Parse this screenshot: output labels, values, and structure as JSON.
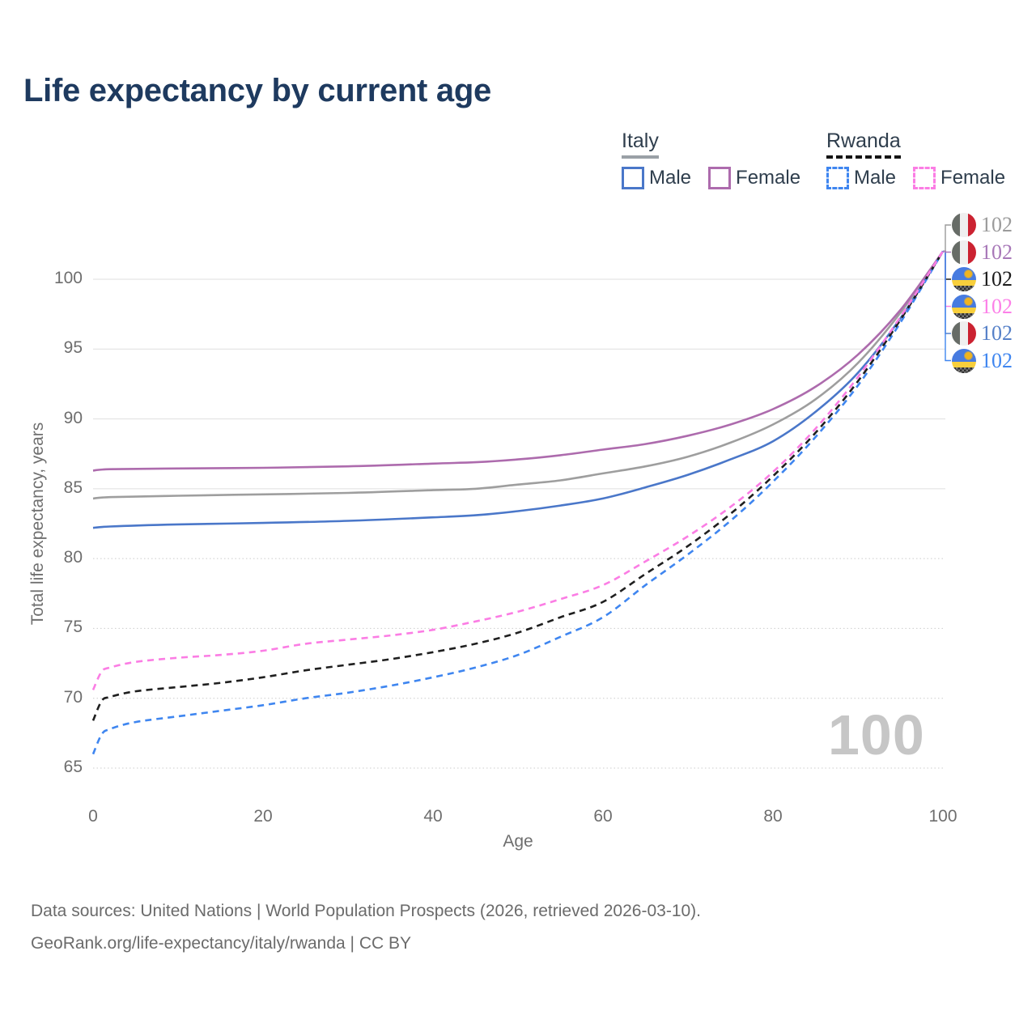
{
  "title": "Life expectancy by current age",
  "legend": {
    "groups": [
      {
        "label": "Italy",
        "style": "solid",
        "items": [
          {
            "label": "Male",
            "color": "#4a77c9"
          },
          {
            "label": "Female",
            "color": "#ad6bad"
          }
        ]
      },
      {
        "label": "Rwanda",
        "style": "dashed",
        "items": [
          {
            "label": "Male",
            "color": "#3f86f0"
          },
          {
            "label": "Female",
            "color": "#fb7de4"
          }
        ]
      }
    ]
  },
  "axes": {
    "y": {
      "label": "Total life expectancy, years",
      "ticks": [
        "100",
        "95",
        "90",
        "85",
        "80",
        "75",
        "70",
        "65"
      ]
    },
    "x": {
      "label": "Age",
      "ticks": [
        "0",
        "20",
        "40",
        "60",
        "80",
        "100"
      ]
    }
  },
  "watermark": "100",
  "endpoints": [
    {
      "country": "Italy",
      "flag": "italy-flag-icon",
      "value": "102",
      "color": "#9b9b9b"
    },
    {
      "country": "Italy",
      "flag": "italy-flag-icon",
      "value": "102",
      "color": "#a878b8"
    },
    {
      "country": "Rwanda",
      "flag": "rwanda-flag-icon",
      "value": "102",
      "color": "#1b1b1b"
    },
    {
      "country": "Rwanda",
      "flag": "rwanda-flag-icon",
      "value": "102",
      "color": "#fc80e8"
    },
    {
      "country": "Italy",
      "flag": "italy-flag-icon",
      "value": "102",
      "color": "#5580c8"
    },
    {
      "country": "Rwanda",
      "flag": "rwanda-flag-icon",
      "value": "102",
      "color": "#3f86f0"
    }
  ],
  "footer": {
    "line1": "Data sources: United Nations | World Population Prospects (2026, retrieved 2026-03-10).",
    "line2": "GeoRank.org/life-expectancy/italy/rwanda | CC BY"
  },
  "colors": {
    "title": "#1e3a5f",
    "axis_text": "#6e6e6e",
    "gridline": "#dfdfdf",
    "watermark": "#c6c6c6",
    "italy_male": "#4a77c9",
    "italy_female": "#ad6bad",
    "italy_total": "#9e9e9e",
    "rwanda_male": "#3f86f0",
    "rwanda_female": "#fb7de4",
    "rwanda_total": "#1f1f1f",
    "flag_italy": [
      "#676c67",
      "#efefef",
      "#cb2231"
    ],
    "flag_rwanda": [
      "#477be0",
      "#f8cf3c",
      "#f0b41f",
      "#2d2d2d"
    ]
  },
  "chart_data": {
    "type": "line",
    "title": "Life expectancy by current age",
    "xlabel": "Age",
    "ylabel": "Total life expectancy, years",
    "xlim": [
      0,
      100
    ],
    "ylim": [
      65,
      103
    ],
    "x_ticks": [
      0,
      20,
      40,
      60,
      80,
      100
    ],
    "y_ticks": [
      65,
      70,
      75,
      80,
      85,
      90,
      95,
      100
    ],
    "grid": true,
    "legend_position": "top-right",
    "series": [
      {
        "name": "Italy Total",
        "color": "#9e9e9e",
        "dash": "solid",
        "points": [
          [
            0,
            84.3
          ],
          [
            2,
            84.4
          ],
          [
            10,
            84.5
          ],
          [
            20,
            84.6
          ],
          [
            30,
            84.7
          ],
          [
            40,
            84.9
          ],
          [
            45,
            85.0
          ],
          [
            50,
            85.3
          ],
          [
            55,
            85.6
          ],
          [
            60,
            86.1
          ],
          [
            65,
            86.6
          ],
          [
            70,
            87.3
          ],
          [
            75,
            88.3
          ],
          [
            80,
            89.6
          ],
          [
            85,
            91.4
          ],
          [
            90,
            94.0
          ],
          [
            95,
            97.6
          ],
          [
            100,
            102
          ]
        ]
      },
      {
        "name": "Italy Male",
        "color": "#4a77c9",
        "dash": "solid",
        "points": [
          [
            0,
            82.2
          ],
          [
            2,
            82.3
          ],
          [
            10,
            82.45
          ],
          [
            20,
            82.55
          ],
          [
            30,
            82.7
          ],
          [
            40,
            82.95
          ],
          [
            45,
            83.1
          ],
          [
            50,
            83.4
          ],
          [
            55,
            83.8
          ],
          [
            60,
            84.3
          ],
          [
            65,
            85.1
          ],
          [
            70,
            86.0
          ],
          [
            75,
            87.1
          ],
          [
            80,
            88.4
          ],
          [
            85,
            90.5
          ],
          [
            90,
            93.3
          ],
          [
            95,
            97.2
          ],
          [
            100,
            102
          ]
        ]
      },
      {
        "name": "Italy Female",
        "color": "#ad6bad",
        "dash": "solid",
        "points": [
          [
            0,
            86.3
          ],
          [
            2,
            86.4
          ],
          [
            10,
            86.45
          ],
          [
            20,
            86.5
          ],
          [
            30,
            86.6
          ],
          [
            40,
            86.8
          ],
          [
            45,
            86.9
          ],
          [
            50,
            87.1
          ],
          [
            55,
            87.4
          ],
          [
            60,
            87.8
          ],
          [
            65,
            88.2
          ],
          [
            70,
            88.8
          ],
          [
            75,
            89.6
          ],
          [
            80,
            90.7
          ],
          [
            85,
            92.3
          ],
          [
            90,
            94.6
          ],
          [
            95,
            97.8
          ],
          [
            100,
            102
          ]
        ]
      },
      {
        "name": "Rwanda Male",
        "color": "#3f86f0",
        "dash": "dashed",
        "points": [
          [
            0,
            66.0
          ],
          [
            1,
            67.4
          ],
          [
            2,
            67.8
          ],
          [
            5,
            68.3
          ],
          [
            10,
            68.7
          ],
          [
            15,
            69.1
          ],
          [
            20,
            69.5
          ],
          [
            25,
            70.0
          ],
          [
            30,
            70.4
          ],
          [
            35,
            70.9
          ],
          [
            40,
            71.5
          ],
          [
            45,
            72.2
          ],
          [
            50,
            73.1
          ],
          [
            55,
            74.4
          ],
          [
            60,
            75.8
          ],
          [
            65,
            78.1
          ],
          [
            70,
            80.3
          ],
          [
            75,
            82.7
          ],
          [
            80,
            85.5
          ],
          [
            85,
            88.7
          ],
          [
            90,
            92.4
          ],
          [
            95,
            96.9
          ],
          [
            100,
            102
          ]
        ]
      },
      {
        "name": "Rwanda Total",
        "color": "#1f1f1f",
        "dash": "dashed",
        "points": [
          [
            0,
            68.4
          ],
          [
            1,
            69.8
          ],
          [
            2,
            70.1
          ],
          [
            5,
            70.5
          ],
          [
            10,
            70.8
          ],
          [
            15,
            71.1
          ],
          [
            20,
            71.5
          ],
          [
            25,
            72.0
          ],
          [
            30,
            72.4
          ],
          [
            35,
            72.8
          ],
          [
            40,
            73.3
          ],
          [
            45,
            73.9
          ],
          [
            50,
            74.7
          ],
          [
            55,
            75.8
          ],
          [
            60,
            76.9
          ],
          [
            65,
            78.9
          ],
          [
            70,
            80.9
          ],
          [
            75,
            83.2
          ],
          [
            80,
            85.9
          ],
          [
            85,
            89.0
          ],
          [
            90,
            92.7
          ],
          [
            95,
            97.1
          ],
          [
            100,
            102
          ]
        ]
      },
      {
        "name": "Rwanda Female",
        "color": "#fb7de4",
        "dash": "dashed",
        "points": [
          [
            0,
            70.6
          ],
          [
            1,
            71.9
          ],
          [
            2,
            72.2
          ],
          [
            5,
            72.6
          ],
          [
            10,
            72.9
          ],
          [
            15,
            73.1
          ],
          [
            20,
            73.4
          ],
          [
            25,
            73.9
          ],
          [
            30,
            74.2
          ],
          [
            35,
            74.5
          ],
          [
            40,
            74.9
          ],
          [
            45,
            75.5
          ],
          [
            50,
            76.2
          ],
          [
            55,
            77.1
          ],
          [
            60,
            78.1
          ],
          [
            65,
            79.8
          ],
          [
            70,
            81.6
          ],
          [
            75,
            83.7
          ],
          [
            80,
            86.2
          ],
          [
            85,
            89.3
          ],
          [
            90,
            93.0
          ],
          [
            95,
            97.3
          ],
          [
            100,
            102
          ]
        ]
      }
    ],
    "endpoint_value": 102,
    "endpoint_age": 100
  }
}
